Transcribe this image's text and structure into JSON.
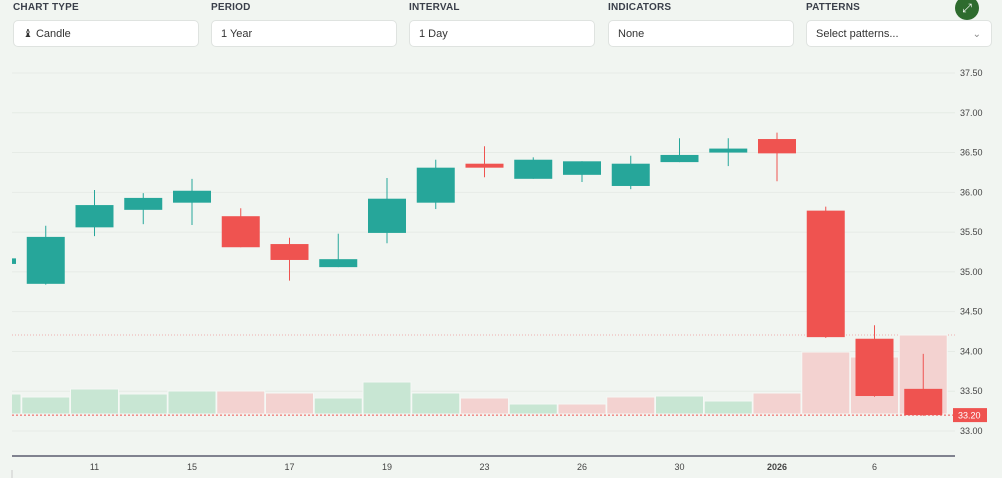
{
  "controls": {
    "chart_type": {
      "label": "CHART TYPE",
      "value": "Candle",
      "icon": "candle-icon"
    },
    "period": {
      "label": "PERIOD",
      "value": "1 Year"
    },
    "interval": {
      "label": "INTERVAL",
      "value": "1 Day"
    },
    "indicators": {
      "label": "INDICATORS",
      "value": "None"
    },
    "patterns": {
      "label": "PATTERNS",
      "placeholder": "Select patterns..."
    },
    "expand_icon": "expand-icon"
  },
  "colors": {
    "up": "#26a69a",
    "down": "#ef5350",
    "up_volume": "#c8e6d3",
    "down_volume": "#f3d2d0",
    "expand_button": "#2e6b2e"
  },
  "chart_data": {
    "type": "candlestick",
    "ylim": [
      32.8,
      37.7
    ],
    "y_ticks": [
      "37.50",
      "37.00",
      "36.50",
      "36.00",
      "35.50",
      "35.00",
      "34.50",
      "34.00",
      "33.50",
      "33.00"
    ],
    "x_tick_labels": [
      {
        "index": 2,
        "label": "11"
      },
      {
        "index": 4,
        "label": "15"
      },
      {
        "index": 6,
        "label": "17"
      },
      {
        "index": 8,
        "label": "19"
      },
      {
        "index": 10,
        "label": "23"
      },
      {
        "index": 12,
        "label": "26"
      },
      {
        "index": 14,
        "label": "30"
      },
      {
        "index": 16,
        "label": "2026"
      },
      {
        "index": 18,
        "label": "6"
      }
    ],
    "last_price": "33.20",
    "grid": true,
    "candles": [
      {
        "o": 35.1,
        "h": 35.17,
        "l": 35.08,
        "c": 35.17,
        "v": 20,
        "vdir": "up"
      },
      {
        "o": 34.85,
        "h": 35.58,
        "l": 34.84,
        "c": 35.44,
        "v": 17,
        "vdir": "up"
      },
      {
        "o": 35.56,
        "h": 36.03,
        "l": 35.45,
        "c": 35.84,
        "v": 25,
        "vdir": "up"
      },
      {
        "o": 35.78,
        "h": 35.99,
        "l": 35.6,
        "c": 35.93,
        "v": 20,
        "vdir": "up"
      },
      {
        "o": 35.87,
        "h": 36.17,
        "l": 35.59,
        "c": 36.02,
        "v": 23,
        "vdir": "up"
      },
      {
        "o": 35.7,
        "h": 35.8,
        "l": 35.31,
        "c": 35.31,
        "v": 23,
        "vdir": "down"
      },
      {
        "o": 35.35,
        "h": 35.43,
        "l": 34.89,
        "c": 35.15,
        "v": 21,
        "vdir": "down"
      },
      {
        "o": 35.06,
        "h": 35.48,
        "l": 35.06,
        "c": 35.16,
        "v": 16,
        "vdir": "up"
      },
      {
        "o": 35.49,
        "h": 36.18,
        "l": 35.36,
        "c": 35.92,
        "v": 32,
        "vdir": "up"
      },
      {
        "o": 35.87,
        "h": 36.41,
        "l": 35.79,
        "c": 36.31,
        "v": 21,
        "vdir": "up"
      },
      {
        "o": 36.36,
        "h": 36.58,
        "l": 36.19,
        "c": 36.31,
        "v": 16,
        "vdir": "down"
      },
      {
        "o": 36.17,
        "h": 36.44,
        "l": 36.17,
        "c": 36.41,
        "v": 10,
        "vdir": "up"
      },
      {
        "o": 36.22,
        "h": 36.39,
        "l": 36.13,
        "c": 36.39,
        "v": 10,
        "vdir": "down"
      },
      {
        "o": 36.08,
        "h": 36.46,
        "l": 36.04,
        "c": 36.36,
        "v": 17,
        "vdir": "down"
      },
      {
        "o": 36.38,
        "h": 36.68,
        "l": 36.38,
        "c": 36.47,
        "v": 18,
        "vdir": "up"
      },
      {
        "o": 36.5,
        "h": 36.68,
        "l": 36.33,
        "c": 36.55,
        "v": 13,
        "vdir": "up"
      },
      {
        "o": 36.67,
        "h": 36.75,
        "l": 36.14,
        "c": 36.49,
        "v": 21,
        "vdir": "down"
      },
      {
        "o": 35.77,
        "h": 35.82,
        "l": 34.17,
        "c": 34.18,
        "v": 62,
        "vdir": "down"
      },
      {
        "o": 34.16,
        "h": 34.33,
        "l": 33.43,
        "c": 33.44,
        "v": 57,
        "vdir": "down"
      },
      {
        "o": 33.53,
        "h": 33.97,
        "l": 33.19,
        "c": 33.2,
        "v": 79,
        "vdir": "down"
      }
    ]
  }
}
